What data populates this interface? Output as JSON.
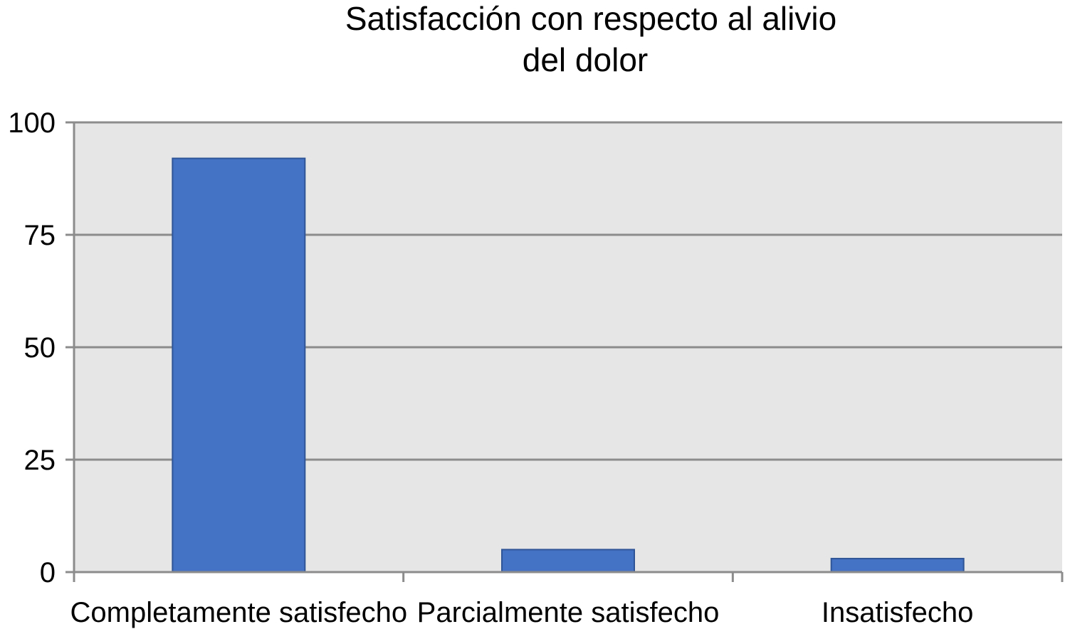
{
  "chart_data": {
    "type": "bar",
    "title_lines": [
      "Satisfacción con respecto al alivio",
      "del dolor"
    ],
    "categories": [
      "Completamente satisfecho",
      "Parcialmente satisfecho",
      "Insatisfecho"
    ],
    "values": [
      92,
      5,
      3
    ],
    "ylim": [
      0,
      100
    ],
    "yticks": [
      0,
      25,
      50,
      75,
      100
    ],
    "ytick_labels": [
      "0",
      "25",
      "50",
      "75",
      "100"
    ],
    "grid": true,
    "legend": "none",
    "colors": {
      "bar": "#4472c4",
      "bar_edge": "#2f5597",
      "plot_bg": "#e6e6e6",
      "grid": "#8c8c8c",
      "axis": "#8c8c8c"
    }
  }
}
